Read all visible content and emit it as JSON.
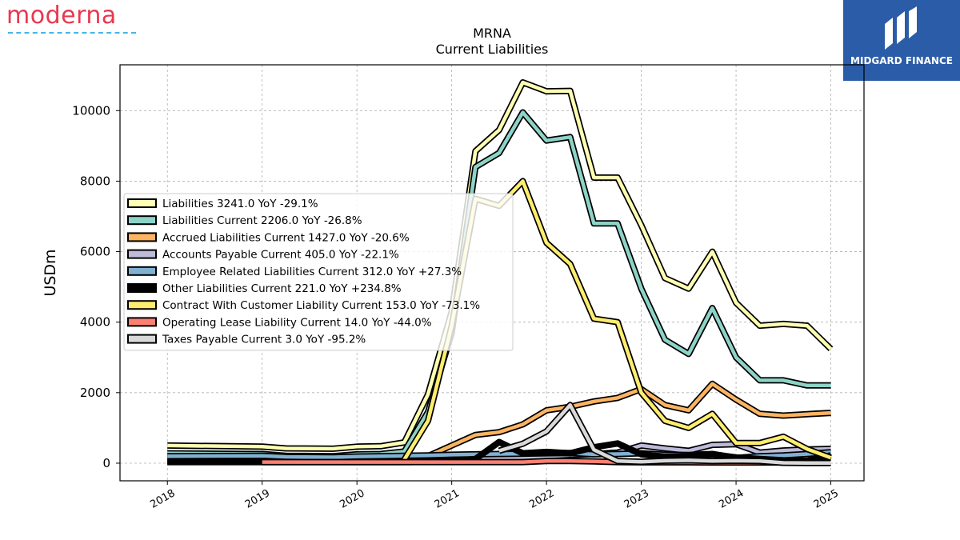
{
  "brand": {
    "name": "moderna"
  },
  "badge": {
    "name": "MIDGARD FINANCE"
  },
  "chart_data": {
    "type": "line",
    "title": "MRNA",
    "subtitle": "Current  Liabilities",
    "xlabel": "",
    "ylabel": "USDm",
    "xlim": [
      2017.5,
      2025.35
    ],
    "ylim": [
      -500,
      11300
    ],
    "x_ticks": [
      "2018",
      "2019",
      "2020",
      "2021",
      "2022",
      "2023",
      "2024",
      "2025"
    ],
    "y_ticks": [
      "0",
      "2000",
      "4000",
      "6000",
      "8000",
      "10000"
    ],
    "grid": true,
    "legend_position": "center-left",
    "series": [
      {
        "name": "Liabilities  3241.0 YoY -29.1%",
        "color": "#ffffb3",
        "x": [
          2018.0,
          2019.0,
          2019.25,
          2019.75,
          2020.0,
          2020.25,
          2020.5,
          2020.75,
          2021.0,
          2021.25,
          2021.5,
          2021.75,
          2022.0,
          2022.25,
          2022.5,
          2022.75,
          2023.0,
          2023.25,
          2023.5,
          2023.75,
          2024.0,
          2024.25,
          2024.5,
          2024.75,
          2025.0
        ],
        "y": [
          500,
          470,
          420,
          410,
          470,
          480,
          590,
          1950,
          4300,
          8850,
          9450,
          10800,
          10550,
          10560,
          8100,
          8100,
          6750,
          5250,
          4950,
          6000,
          4550,
          3900,
          3950,
          3900,
          3241
        ]
      },
      {
        "name": "Liabilities Current  2206.0 YoY -26.8%",
        "color": "#8dd3c7",
        "x": [
          2018.0,
          2019.0,
          2019.25,
          2019.75,
          2020.0,
          2020.25,
          2020.5,
          2020.75,
          2021.0,
          2021.25,
          2021.5,
          2021.75,
          2022.0,
          2022.25,
          2022.5,
          2022.75,
          2023.0,
          2023.25,
          2023.5,
          2023.75,
          2024.0,
          2024.25,
          2024.5,
          2024.75,
          2025.0
        ],
        "y": [
          280,
          260,
          210,
          200,
          250,
          260,
          330,
          1450,
          3700,
          8400,
          8800,
          9950,
          9150,
          9250,
          6800,
          6800,
          4950,
          3500,
          3100,
          4400,
          3000,
          2350,
          2350,
          2206,
          2206
        ]
      },
      {
        "name": "Accrued Liabilities Current  1427.0 YoY -20.6%",
        "color": "#fdb462",
        "x": [
          2018.0,
          2019.0,
          2019.25,
          2019.75,
          2020.0,
          2020.25,
          2020.5,
          2020.75,
          2021.0,
          2021.25,
          2021.5,
          2021.75,
          2022.0,
          2022.25,
          2022.5,
          2022.75,
          2023.0,
          2023.25,
          2023.5,
          2023.75,
          2024.0,
          2024.25,
          2024.5,
          2024.75,
          2025.0
        ],
        "y": [
          120,
          110,
          100,
          95,
          110,
          115,
          130,
          200,
          500,
          800,
          880,
          1100,
          1500,
          1600,
          1750,
          1850,
          2100,
          1650,
          1500,
          2250,
          1800,
          1400,
          1350,
          1390,
          1427
        ]
      },
      {
        "name": "Accounts Payable Current  405.0 YoY -22.1%",
        "color": "#bebada",
        "x": [
          2018.0,
          2019.0,
          2019.25,
          2019.75,
          2020.0,
          2020.25,
          2020.5,
          2020.75,
          2021.0,
          2021.25,
          2021.5,
          2021.75,
          2022.0,
          2022.25,
          2022.5,
          2022.75,
          2023.0,
          2023.25,
          2023.5,
          2023.75,
          2024.0,
          2024.25,
          2024.5,
          2024.75,
          2025.0
        ],
        "y": [
          60,
          55,
          50,
          45,
          50,
          55,
          60,
          70,
          90,
          110,
          130,
          160,
          200,
          230,
          260,
          300,
          500,
          420,
          350,
          520,
          540,
          300,
          360,
          390,
          405
        ]
      },
      {
        "name": "Employee Related Liabilities Current  312.0 YoY +27.3%",
        "color": "#80b1d3",
        "x": [
          2018.0,
          2019.0,
          2019.25,
          2019.75,
          2020.0,
          2020.25,
          2020.5,
          2020.75,
          2021.0,
          2021.25,
          2021.5,
          2021.75,
          2022.0,
          2022.25,
          2022.5,
          2022.75,
          2023.0,
          2023.25,
          2023.5,
          2023.75,
          2024.0,
          2024.25,
          2024.5,
          2024.75,
          2025.0
        ],
        "y": [
          200,
          210,
          180,
          170,
          190,
          200,
          210,
          220,
          240,
          250,
          260,
          270,
          280,
          290,
          250,
          260,
          280,
          240,
          230,
          260,
          150,
          200,
          220,
          260,
          312
        ]
      },
      {
        "name": "Other Liabilities Current  221.0 YoY +234.8%",
        "color": "#000000",
        "x": [
          2018.0,
          2019.0,
          2019.25,
          2019.75,
          2020.0,
          2020.25,
          2020.5,
          2020.75,
          2021.0,
          2021.25,
          2021.5,
          2021.75,
          2022.0,
          2022.25,
          2022.5,
          2022.75,
          2023.0,
          2023.25,
          2023.5,
          2023.75,
          2024.0,
          2024.25,
          2024.5,
          2024.75,
          2025.0
        ],
        "y": [
          30,
          30,
          30,
          30,
          30,
          30,
          30,
          40,
          60,
          120,
          600,
          280,
          320,
          280,
          450,
          560,
          250,
          180,
          200,
          250,
          160,
          120,
          80,
          70,
          221
        ]
      },
      {
        "name": "Contract With Customer Liability Current  153.0 YoY -73.1%",
        "color": "#ffed6f",
        "x": [
          2020.5,
          2020.75,
          2021.0,
          2021.25,
          2021.5,
          2021.75,
          2022.0,
          2022.25,
          2022.5,
          2022.75,
          2023.0,
          2023.25,
          2023.5,
          2023.75,
          2024.0,
          2024.25,
          2024.5,
          2024.75,
          2025.0
        ],
        "y": [
          100,
          1200,
          3900,
          7500,
          7300,
          8000,
          6250,
          5650,
          4100,
          4000,
          2000,
          1200,
          1000,
          1400,
          570,
          570,
          750,
          400,
          153
        ]
      },
      {
        "name": "Operating Lease Liability Current  14.0 YoY -44.0%",
        "color": "#fb8072",
        "x": [
          2019.0,
          2019.25,
          2019.75,
          2020.0,
          2020.25,
          2020.5,
          2020.75,
          2021.0,
          2021.25,
          2021.5,
          2021.75,
          2022.0,
          2022.25,
          2022.5,
          2022.75,
          2023.0,
          2023.25,
          2023.5,
          2023.75,
          2024.0,
          2024.25,
          2024.5,
          2024.75,
          2025.0
        ],
        "y": [
          30,
          30,
          30,
          30,
          30,
          30,
          30,
          30,
          30,
          30,
          30,
          60,
          60,
          50,
          30,
          25,
          25,
          25,
          20,
          20,
          20,
          20,
          18,
          14
        ]
      },
      {
        "name": "Taxes Payable Current  3.0 YoY -95.2%",
        "color": "#d9d9d9",
        "x": [
          2021.5,
          2021.75,
          2022.0,
          2022.25,
          2022.5,
          2022.75,
          2023.0,
          2023.25,
          2023.5,
          2023.75,
          2024.0,
          2024.25,
          2024.5,
          2024.75,
          2025.0
        ],
        "y": [
          350,
          550,
          900,
          1650,
          380,
          60,
          40,
          70,
          80,
          60,
          70,
          60,
          10,
          5,
          3
        ]
      }
    ]
  }
}
